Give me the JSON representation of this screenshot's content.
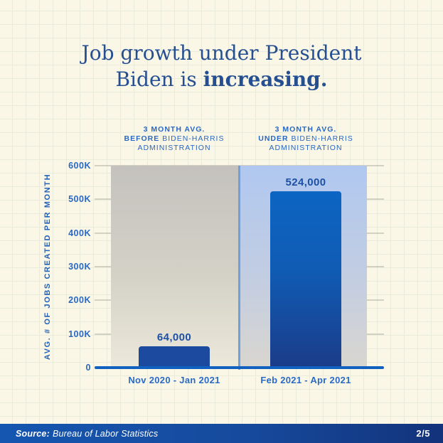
{
  "title": {
    "line1": "Job growth under President",
    "line2_prefix": "Biden is ",
    "line2_bold": "increasing."
  },
  "chart_data": {
    "type": "bar",
    "title": "Job growth under President Biden is increasing.",
    "xlabel": "",
    "ylabel": "AVG. # OF JOBS CREATED PER MONTH",
    "ylim": [
      0,
      600000
    ],
    "ytick_labels": [
      "600K",
      "500K",
      "400K",
      "300K",
      "200K",
      "100K",
      "0"
    ],
    "ytick_values": [
      600000,
      500000,
      400000,
      300000,
      200000,
      100000,
      0
    ],
    "grid": true,
    "legend_position": "none",
    "categories": [
      "Nov 2020 - Jan 2021",
      "Feb 2021 - Apr 2021"
    ],
    "values": [
      64000,
      524000
    ],
    "value_labels": [
      "64,000",
      "524,000"
    ],
    "group_headers": [
      {
        "line1": "3 MONTH AVG.",
        "line2_bold": "BEFORE",
        "line2_rest": " BIDEN-HARRIS",
        "line3": "ADMINISTRATION"
      },
      {
        "line1": "3 MONTH AVG.",
        "line2_bold": "UNDER",
        "line2_rest": " BIDEN-HARRIS",
        "line3": "ADMINISTRATION"
      }
    ]
  },
  "footer": {
    "source_label": "Source:",
    "source_text": "Bureau of Labor Statistics",
    "page_indicator": "2/5"
  },
  "colors": {
    "background": "#fbf7e6",
    "grid_paper_line": "#e9ecdd",
    "title_navy": "#264f92",
    "header_blue": "#2a68c2",
    "bar_before": "#1c4a9e",
    "bar_under_top": "#0c65c2",
    "bar_under_bottom": "#1b3c88",
    "axis_blue": "#1161c1",
    "panel_before_top": "#c4c2be",
    "panel_under_top": "#b0c8f0",
    "panel_divider": "#6fa0da",
    "footer_left": "#1556b0",
    "footer_right": "#13337b",
    "footer_text": "#ffffff"
  }
}
